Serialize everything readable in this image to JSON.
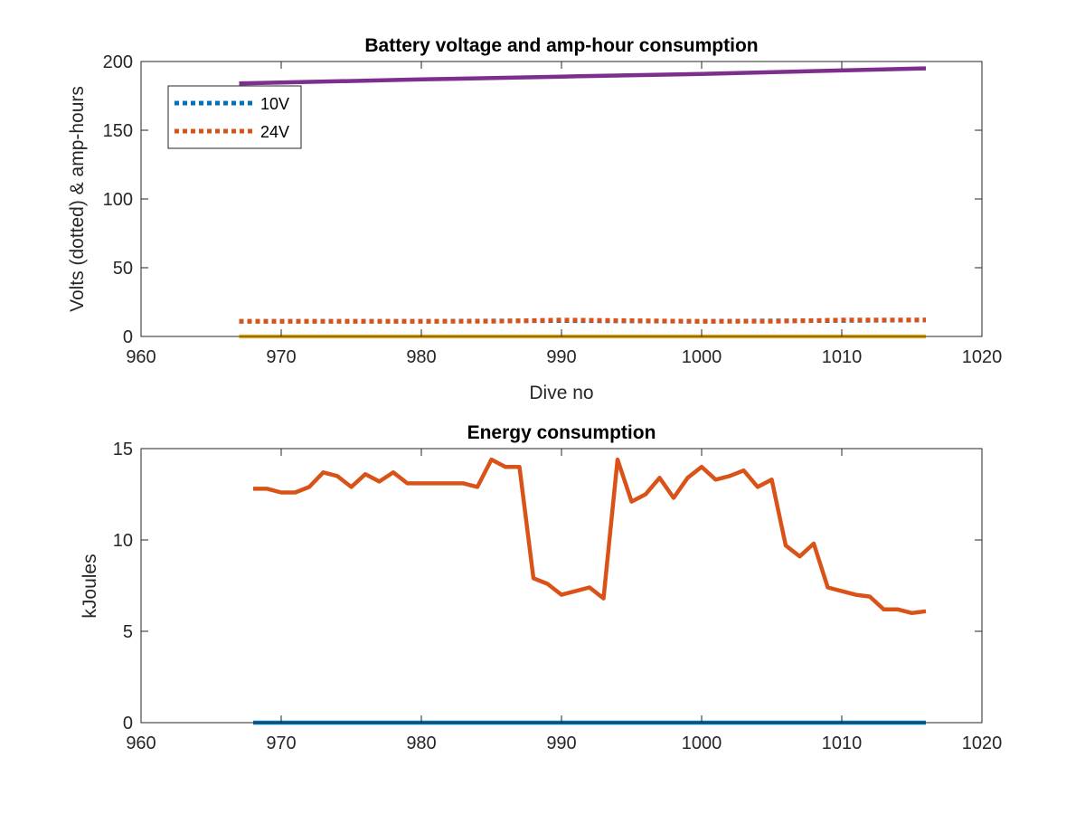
{
  "chart_data": [
    {
      "type": "line",
      "title": "Battery voltage and amp-hour consumption",
      "xlabel": "Dive no",
      "ylabel": "Volts (dotted) & amp-hours",
      "xlim": [
        960,
        1020
      ],
      "ylim": [
        0,
        200
      ],
      "xticks": [
        960,
        970,
        980,
        990,
        1000,
        1010,
        1020
      ],
      "yticks": [
        0,
        50,
        100,
        150,
        200
      ],
      "legend": {
        "location": "top-left",
        "entries": [
          "10V",
          "24V"
        ]
      },
      "grid": false,
      "series": [
        {
          "name": "10V",
          "style": "dotted",
          "color": "#0072BD",
          "x": [
            967,
            980,
            990,
            1000,
            1016
          ],
          "y": [
            11,
            11,
            11.5,
            11,
            12
          ]
        },
        {
          "name": "24V",
          "style": "dotted",
          "color": "#D95319",
          "x": [
            967,
            975,
            985,
            990,
            995,
            1000,
            1005,
            1010,
            1016
          ],
          "y": [
            11,
            11,
            11,
            12,
            11.5,
            11,
            11,
            12,
            12
          ]
        },
        {
          "style": "solid",
          "color": "#EDB120",
          "x": [
            967,
            1016
          ],
          "y": [
            0,
            0
          ]
        },
        {
          "style": "solid",
          "color": "#7E2F8E",
          "x": [
            967,
            980,
            990,
            1000,
            1016
          ],
          "y": [
            184,
            187,
            189,
            191,
            195
          ]
        }
      ]
    },
    {
      "type": "line",
      "title": "Energy consumption",
      "xlabel": "",
      "ylabel": "kJoules",
      "xlim": [
        960,
        1020
      ],
      "ylim": [
        0,
        15
      ],
      "xticks": [
        960,
        970,
        980,
        990,
        1000,
        1010,
        1020
      ],
      "yticks": [
        0,
        5,
        10,
        15
      ],
      "grid": false,
      "series": [
        {
          "style": "solid",
          "color": "#0072BD",
          "x": [
            968,
            1016
          ],
          "y": [
            0,
            0
          ]
        },
        {
          "style": "solid",
          "color": "#D95319",
          "x": [
            968,
            969,
            970,
            971,
            972,
            973,
            974,
            975,
            976,
            977,
            978,
            979,
            980,
            981,
            982,
            983,
            984,
            985,
            986,
            987,
            988,
            989,
            990,
            991,
            992,
            993,
            994,
            995,
            996,
            997,
            998,
            999,
            1000,
            1001,
            1002,
            1003,
            1004,
            1005,
            1006,
            1007,
            1008,
            1009,
            1010,
            1011,
            1012,
            1013,
            1014,
            1015,
            1016
          ],
          "y": [
            12.8,
            12.8,
            12.6,
            12.6,
            12.9,
            13.7,
            13.5,
            12.9,
            13.6,
            13.2,
            13.7,
            13.1,
            13.1,
            13.1,
            13.1,
            13.1,
            12.9,
            14.4,
            14.0,
            14.0,
            7.9,
            7.6,
            7.0,
            7.2,
            7.4,
            6.8,
            14.4,
            12.1,
            12.5,
            13.4,
            12.3,
            13.4,
            14.0,
            13.3,
            13.5,
            13.8,
            12.9,
            13.3,
            9.7,
            9.1,
            9.8,
            7.4,
            7.2,
            7.0,
            6.9,
            6.2,
            6.2,
            6.0,
            6.1
          ]
        }
      ]
    }
  ]
}
